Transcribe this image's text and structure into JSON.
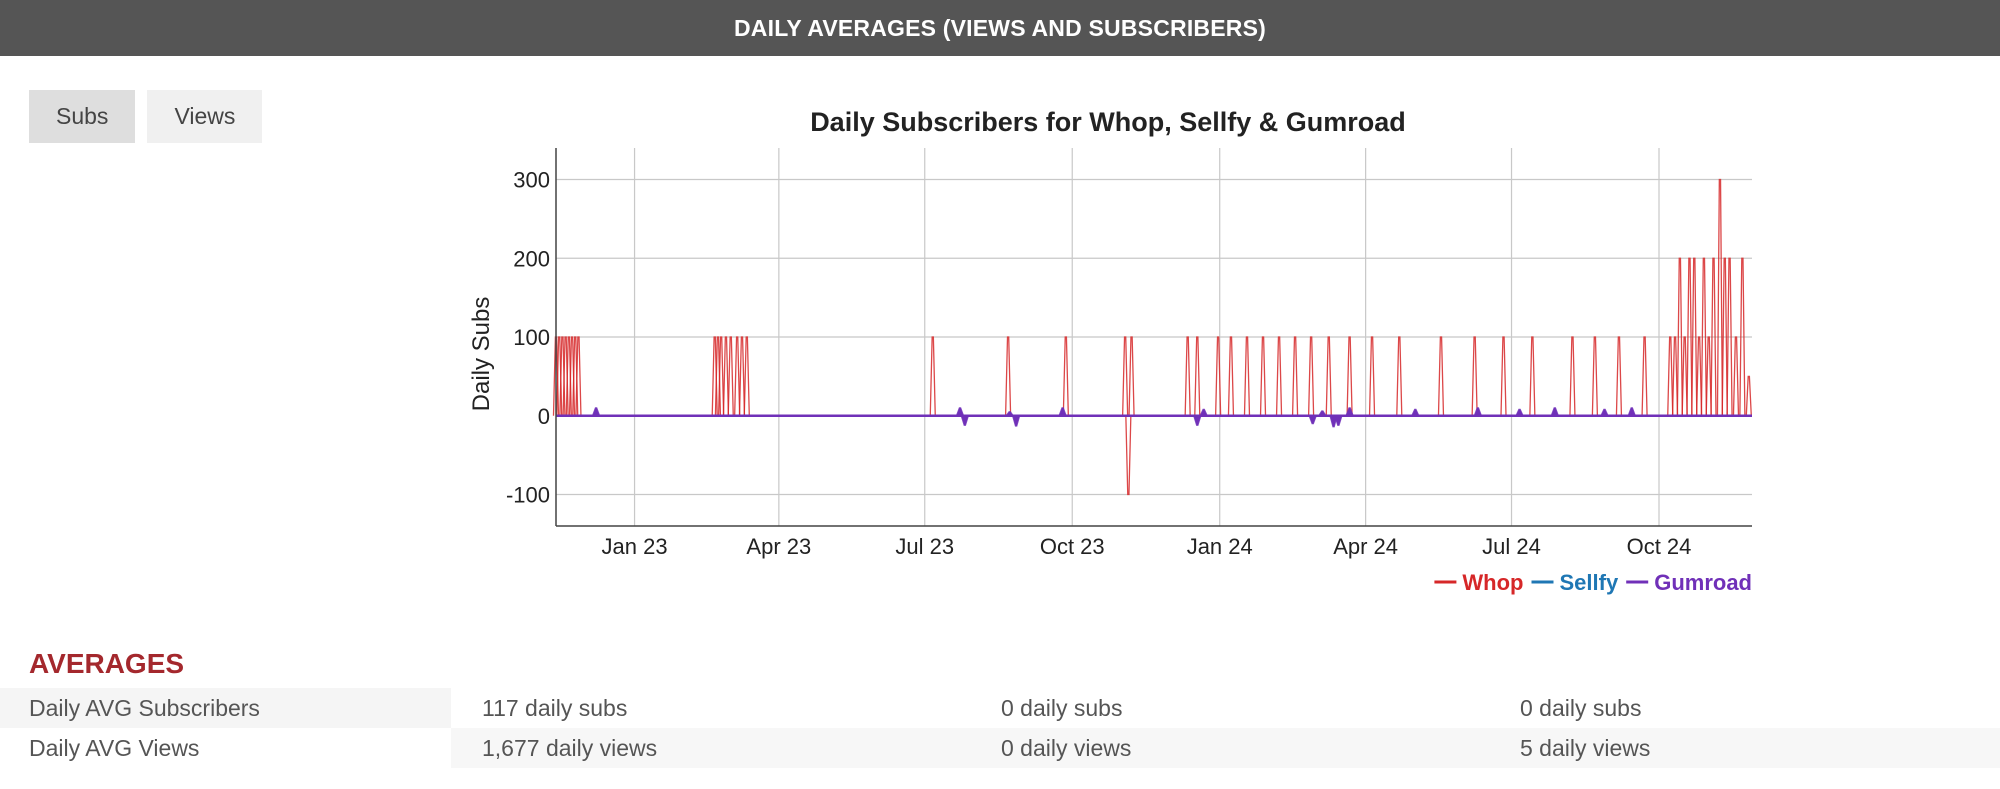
{
  "header": {
    "title": "DAILY AVERAGES (VIEWS AND SUBSCRIBERS)"
  },
  "tabs": [
    {
      "label": "Subs",
      "active": true
    },
    {
      "label": "Views",
      "active": false
    }
  ],
  "chart_data": {
    "type": "line",
    "title": "Daily Subscribers for Whop, Sellfy & Gumroad",
    "xlabel": "",
    "ylabel": "Daily Subs",
    "ylim": [
      -140,
      340
    ],
    "xlim": [
      "2022-11-13",
      "2024-11-28"
    ],
    "yticks": [
      -100,
      0,
      100,
      200,
      300
    ],
    "xticks": [
      {
        "date": "2023-01-01",
        "label": "Jan 23"
      },
      {
        "date": "2023-04-01",
        "label": "Apr 23"
      },
      {
        "date": "2023-07-01",
        "label": "Jul 23"
      },
      {
        "date": "2023-10-01",
        "label": "Oct 23"
      },
      {
        "date": "2024-01-01",
        "label": "Jan 24"
      },
      {
        "date": "2024-04-01",
        "label": "Apr 24"
      },
      {
        "date": "2024-07-01",
        "label": "Jul 24"
      },
      {
        "date": "2024-10-01",
        "label": "Oct 24"
      }
    ],
    "grid": true,
    "legend_position": "bottom-right",
    "series": [
      {
        "name": "Whop",
        "color": "#d62728",
        "baseline": 0,
        "spikes": [
          [
            "2022-11-13",
            100
          ],
          [
            "2022-11-15",
            100
          ],
          [
            "2022-11-17",
            100
          ],
          [
            "2022-11-19",
            100
          ],
          [
            "2022-11-21",
            100
          ],
          [
            "2022-11-23",
            100
          ],
          [
            "2022-11-25",
            100
          ],
          [
            "2022-11-27",
            100
          ],
          [
            "2023-02-20",
            100
          ],
          [
            "2023-02-22",
            100
          ],
          [
            "2023-02-24",
            100
          ],
          [
            "2023-02-27",
            100
          ],
          [
            "2023-03-02",
            100
          ],
          [
            "2023-03-06",
            100
          ],
          [
            "2023-03-09",
            100
          ],
          [
            "2023-03-12",
            100
          ],
          [
            "2023-07-06",
            100
          ],
          [
            "2023-08-22",
            100
          ],
          [
            "2023-09-27",
            100
          ],
          [
            "2023-11-05",
            -100
          ],
          [
            "2023-11-03",
            100
          ],
          [
            "2023-11-07",
            100
          ],
          [
            "2023-12-12",
            100
          ],
          [
            "2023-12-18",
            100
          ],
          [
            "2023-12-31",
            100
          ],
          [
            "2024-01-08",
            100
          ],
          [
            "2024-01-18",
            100
          ],
          [
            "2024-01-28",
            100
          ],
          [
            "2024-02-07",
            100
          ],
          [
            "2024-02-17",
            100
          ],
          [
            "2024-02-27",
            100
          ],
          [
            "2024-03-09",
            100
          ],
          [
            "2024-03-22",
            100
          ],
          [
            "2024-04-05",
            100
          ],
          [
            "2024-04-22",
            100
          ],
          [
            "2024-05-18",
            100
          ],
          [
            "2024-06-08",
            100
          ],
          [
            "2024-06-26",
            100
          ],
          [
            "2024-07-14",
            100
          ],
          [
            "2024-08-08",
            100
          ],
          [
            "2024-08-22",
            100
          ],
          [
            "2024-09-06",
            100
          ],
          [
            "2024-09-22",
            100
          ],
          [
            "2024-10-08",
            100
          ],
          [
            "2024-10-11",
            100
          ],
          [
            "2024-10-14",
            200
          ],
          [
            "2024-10-17",
            100
          ],
          [
            "2024-10-20",
            200
          ],
          [
            "2024-10-23",
            200
          ],
          [
            "2024-10-26",
            100
          ],
          [
            "2024-10-29",
            200
          ],
          [
            "2024-11-01",
            100
          ],
          [
            "2024-11-04",
            200
          ],
          [
            "2024-11-08",
            300
          ],
          [
            "2024-11-11",
            200
          ],
          [
            "2024-11-14",
            200
          ],
          [
            "2024-11-18",
            100
          ],
          [
            "2024-11-22",
            200
          ],
          [
            "2024-11-26",
            50
          ]
        ]
      },
      {
        "name": "Sellfy",
        "color": "#1f77b4",
        "baseline": 0,
        "spikes": []
      },
      {
        "name": "Gumroad",
        "color": "#7030b8",
        "baseline": 0,
        "spikes": [
          [
            "2022-12-08",
            10
          ],
          [
            "2023-07-23",
            10
          ],
          [
            "2023-07-26",
            -12
          ],
          [
            "2023-08-23",
            5
          ],
          [
            "2023-08-27",
            -13
          ],
          [
            "2023-09-25",
            10
          ],
          [
            "2023-12-18",
            -12
          ],
          [
            "2023-12-22",
            8
          ],
          [
            "2024-02-28",
            -10
          ],
          [
            "2024-03-05",
            6
          ],
          [
            "2024-03-12",
            -14
          ],
          [
            "2024-03-15",
            -12
          ],
          [
            "2024-03-22",
            10
          ],
          [
            "2024-05-02",
            8
          ],
          [
            "2024-06-10",
            10
          ],
          [
            "2024-07-06",
            8
          ],
          [
            "2024-07-28",
            10
          ],
          [
            "2024-08-28",
            8
          ],
          [
            "2024-09-14",
            10
          ]
        ]
      }
    ]
  },
  "averages": {
    "title": "AVERAGES",
    "rows": [
      {
        "label": "Daily AVG Subscribers",
        "values": [
          "117 daily subs",
          "0 daily subs",
          "0 daily subs"
        ]
      },
      {
        "label": "Daily AVG Views",
        "values": [
          "1,677 daily views",
          "0 daily views",
          "5 daily views"
        ]
      }
    ]
  }
}
